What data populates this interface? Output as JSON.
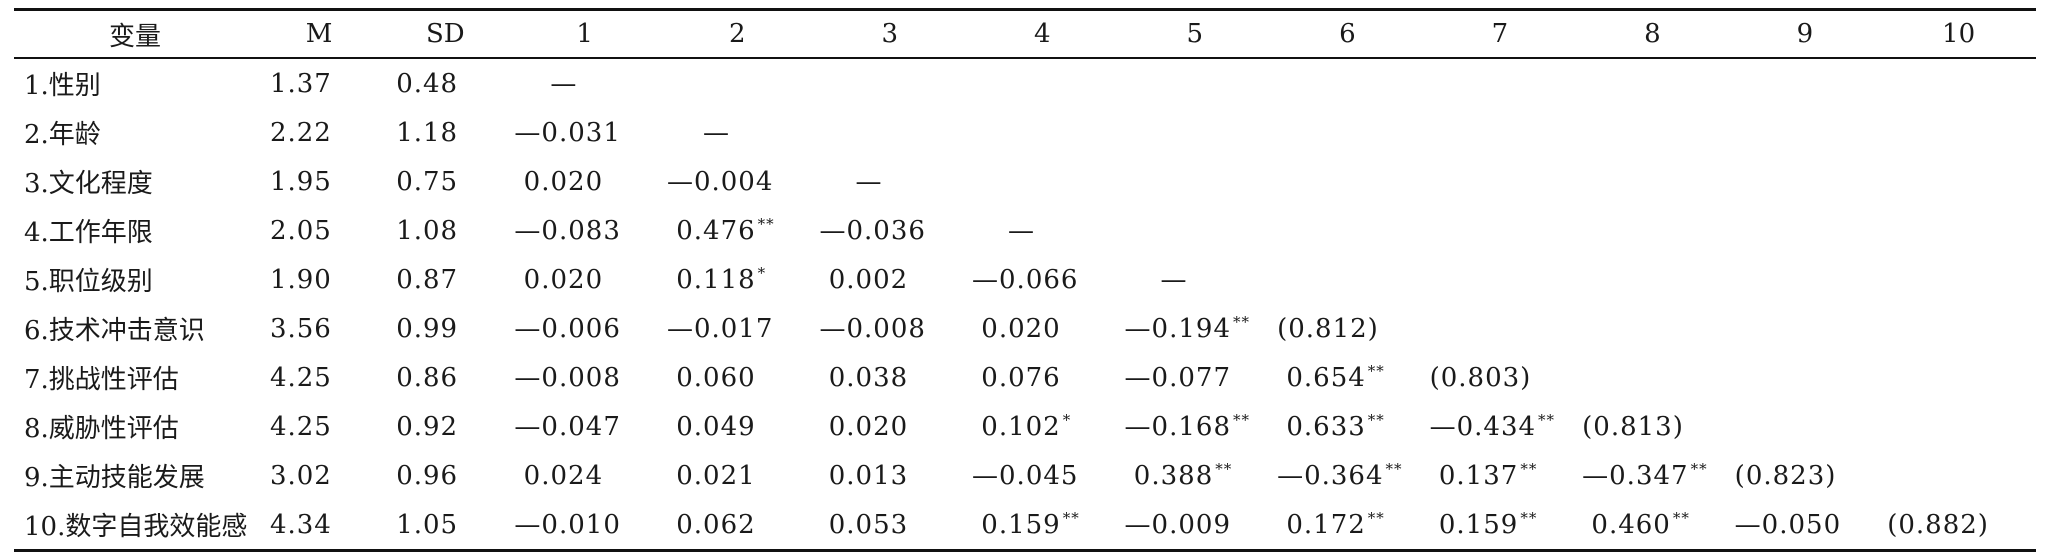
{
  "header": [
    "变量",
    "M",
    "SD",
    "1",
    "2",
    "3",
    "4",
    "5",
    "6",
    "7",
    "8",
    "9",
    "10"
  ],
  "rows": [
    {
      "variable": "1.性别",
      "m": "1.37",
      "sd": "0.48",
      "cells": [
        {
          "v": "—",
          "s": ""
        },
        {
          "v": "",
          "s": ""
        },
        {
          "v": "",
          "s": ""
        },
        {
          "v": "",
          "s": ""
        },
        {
          "v": "",
          "s": ""
        },
        {
          "v": "",
          "s": ""
        },
        {
          "v": "",
          "s": ""
        },
        {
          "v": "",
          "s": ""
        },
        {
          "v": "",
          "s": ""
        },
        {
          "v": "",
          "s": ""
        }
      ]
    },
    {
      "variable": "2.年龄",
      "m": "2.22",
      "sd": "1.18",
      "cells": [
        {
          "v": "—0.031",
          "s": ""
        },
        {
          "v": "—",
          "s": ""
        },
        {
          "v": "",
          "s": ""
        },
        {
          "v": "",
          "s": ""
        },
        {
          "v": "",
          "s": ""
        },
        {
          "v": "",
          "s": ""
        },
        {
          "v": "",
          "s": ""
        },
        {
          "v": "",
          "s": ""
        },
        {
          "v": "",
          "s": ""
        },
        {
          "v": "",
          "s": ""
        }
      ]
    },
    {
      "variable": "3.文化程度",
      "m": "1.95",
      "sd": "0.75",
      "cells": [
        {
          "v": " 0.020",
          "s": ""
        },
        {
          "v": "—0.004",
          "s": ""
        },
        {
          "v": "—",
          "s": ""
        },
        {
          "v": "",
          "s": ""
        },
        {
          "v": "",
          "s": ""
        },
        {
          "v": "",
          "s": ""
        },
        {
          "v": "",
          "s": ""
        },
        {
          "v": "",
          "s": ""
        },
        {
          "v": "",
          "s": ""
        },
        {
          "v": "",
          "s": ""
        }
      ]
    },
    {
      "variable": "4.工作年限",
      "m": "2.05",
      "sd": "1.08",
      "cells": [
        {
          "v": "—0.083",
          "s": ""
        },
        {
          "v": " 0.476",
          "s": "**"
        },
        {
          "v": "—0.036",
          "s": ""
        },
        {
          "v": "—",
          "s": ""
        },
        {
          "v": "",
          "s": ""
        },
        {
          "v": "",
          "s": ""
        },
        {
          "v": "",
          "s": ""
        },
        {
          "v": "",
          "s": ""
        },
        {
          "v": "",
          "s": ""
        },
        {
          "v": "",
          "s": ""
        }
      ]
    },
    {
      "variable": "5.职位级别",
      "m": "1.90",
      "sd": "0.87",
      "cells": [
        {
          "v": " 0.020",
          "s": ""
        },
        {
          "v": " 0.118",
          "s": "*"
        },
        {
          "v": " 0.002",
          "s": ""
        },
        {
          "v": "—0.066",
          "s": ""
        },
        {
          "v": "—",
          "s": ""
        },
        {
          "v": "",
          "s": ""
        },
        {
          "v": "",
          "s": ""
        },
        {
          "v": "",
          "s": ""
        },
        {
          "v": "",
          "s": ""
        },
        {
          "v": "",
          "s": ""
        }
      ]
    },
    {
      "variable": "6.技术冲击意识",
      "m": "3.56",
      "sd": "0.99",
      "cells": [
        {
          "v": "—0.006",
          "s": ""
        },
        {
          "v": "—0.017",
          "s": ""
        },
        {
          "v": "—0.008",
          "s": ""
        },
        {
          "v": " 0.020",
          "s": ""
        },
        {
          "v": "—0.194",
          "s": "**"
        },
        {
          "v": "(0.812)",
          "s": ""
        },
        {
          "v": "",
          "s": ""
        },
        {
          "v": "",
          "s": ""
        },
        {
          "v": "",
          "s": ""
        },
        {
          "v": "",
          "s": ""
        }
      ]
    },
    {
      "variable": "7.挑战性评估",
      "m": "4.25",
      "sd": "0.86",
      "cells": [
        {
          "v": "—0.008",
          "s": ""
        },
        {
          "v": " 0.060",
          "s": ""
        },
        {
          "v": " 0.038",
          "s": ""
        },
        {
          "v": " 0.076",
          "s": ""
        },
        {
          "v": "—0.077",
          "s": ""
        },
        {
          "v": " 0.654",
          "s": "**"
        },
        {
          "v": "(0.803)",
          "s": ""
        },
        {
          "v": "",
          "s": ""
        },
        {
          "v": "",
          "s": ""
        },
        {
          "v": "",
          "s": ""
        }
      ]
    },
    {
      "variable": "8.威胁性评估",
      "m": "4.25",
      "sd": "0.92",
      "cells": [
        {
          "v": "—0.047",
          "s": ""
        },
        {
          "v": " 0.049",
          "s": ""
        },
        {
          "v": " 0.020",
          "s": ""
        },
        {
          "v": " 0.102",
          "s": "*"
        },
        {
          "v": "—0.168",
          "s": "**"
        },
        {
          "v": " 0.633",
          "s": "**"
        },
        {
          "v": "—0.434",
          "s": "**"
        },
        {
          "v": "(0.813)",
          "s": ""
        },
        {
          "v": "",
          "s": ""
        },
        {
          "v": "",
          "s": ""
        }
      ]
    },
    {
      "variable": "9.主动技能发展",
      "m": "3.02",
      "sd": "0.96",
      "cells": [
        {
          "v": " 0.024",
          "s": ""
        },
        {
          "v": " 0.021",
          "s": ""
        },
        {
          "v": " 0.013",
          "s": ""
        },
        {
          "v": "—0.045",
          "s": ""
        },
        {
          "v": " 0.388",
          "s": "**"
        },
        {
          "v": "—0.364",
          "s": "**"
        },
        {
          "v": " 0.137",
          "s": "**"
        },
        {
          "v": "—0.347",
          "s": "**"
        },
        {
          "v": "(0.823)",
          "s": ""
        },
        {
          "v": "",
          "s": ""
        }
      ]
    },
    {
      "variable": "10.数字自我效能感",
      "m": "4.34",
      "sd": "1.05",
      "cells": [
        {
          "v": "—0.010",
          "s": ""
        },
        {
          "v": " 0.062",
          "s": ""
        },
        {
          "v": " 0.053",
          "s": ""
        },
        {
          "v": " 0.159",
          "s": "**"
        },
        {
          "v": "—0.009",
          "s": ""
        },
        {
          "v": " 0.172",
          "s": "**"
        },
        {
          "v": " 0.159",
          "s": "**"
        },
        {
          "v": " 0.460",
          "s": "**"
        },
        {
          "v": "—0.050",
          "s": ""
        },
        {
          "v": "(0.882)",
          "s": ""
        }
      ]
    }
  ]
}
